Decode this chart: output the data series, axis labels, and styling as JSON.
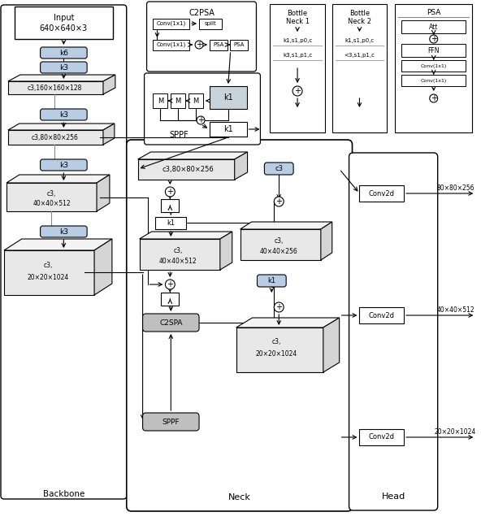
{
  "bg_color": "#ffffff",
  "conv_color": "#b8cce4",
  "gray_color": "#bfbfbf",
  "feature_top_color": "#f0f0f0",
  "feature_front_color": "#e0e0e0",
  "feature_side_color": "#d0d0d0",
  "backbone_label": "Backbone",
  "neck_label": "Neck",
  "head_label": "Head"
}
